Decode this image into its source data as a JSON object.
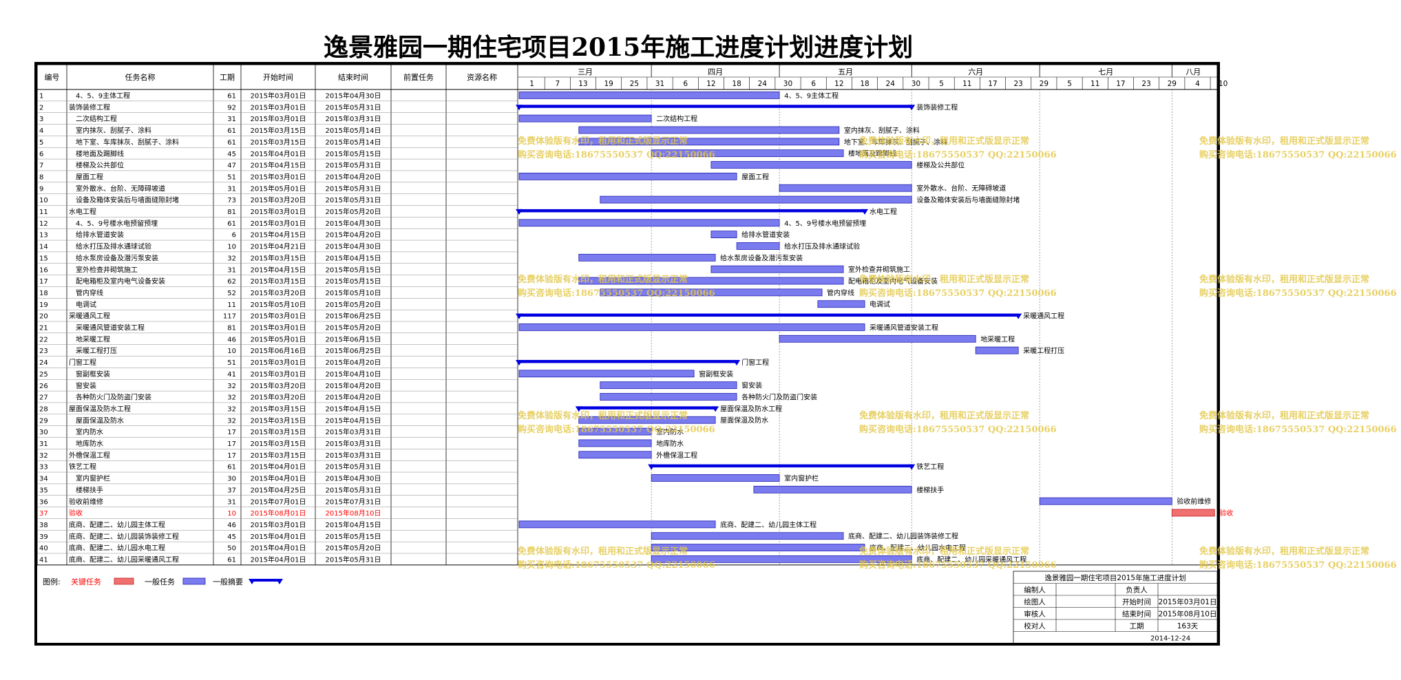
{
  "title": "逸景雅园一期住宅项目2015年施工进度计划进度计划",
  "table_headers": [
    "编号",
    "任务名称",
    "工期",
    "开始时间",
    "结束时间",
    "前置任务",
    "资源名称"
  ],
  "month_labels": [
    "三月",
    "四月",
    "五月",
    "六月",
    "七月",
    "八月"
  ],
  "day_labels": [
    "1",
    "7",
    "13",
    "19",
    "25",
    "31",
    "6",
    "12",
    "18",
    "24",
    "30",
    "6",
    "12",
    "18",
    "24",
    "30",
    "5",
    "11",
    "17",
    "23",
    "29",
    "5",
    "11",
    "17",
    "23",
    "29",
    "4",
    "10"
  ],
  "legend": {
    "prefix": "图例:",
    "critical": "关键任务",
    "normal": "一般任务",
    "summary": "一般摘要"
  },
  "watermark": {
    "line1": "免费体验版有水印，租用和正式版显示正常",
    "line2": "购买咨询电话:18675550537 QQ:22150066"
  },
  "info_box": {
    "title": "逸景雅园一期住宅项目2015年施工进度计划",
    "rows": [
      [
        "编制人",
        "",
        "负责人",
        ""
      ],
      [
        "绘图人",
        "",
        "开始时间",
        "2015年03月01日"
      ],
      [
        "审核人",
        "",
        "结束时间",
        "2015年08月10日"
      ],
      [
        "校对人",
        "",
        "工期",
        "163天"
      ]
    ],
    "date": "2014-12-24"
  },
  "colors": {
    "task_bar": "#7b7bf0",
    "summary_bar": "#0000e0",
    "critical_bar": "#f07070",
    "critical_text": "#ff0000",
    "watermark": "#e3c84a"
  },
  "chart_data": {
    "type": "gantt",
    "project_start": "2015-03-01",
    "project_end": "2015-08-10",
    "tasks": [
      {
        "id": "1",
        "name": "4、5、9主体工程",
        "indent": 1,
        "duration": 61,
        "start": "2015年03月01日",
        "end": "2015年04月30日",
        "kind": "task"
      },
      {
        "id": "2",
        "name": "装饰装修工程",
        "indent": 0,
        "duration": 92,
        "start": "2015年03月01日",
        "end": "2015年05月31日",
        "kind": "summary"
      },
      {
        "id": "3",
        "name": "二次结构工程",
        "indent": 1,
        "duration": 31,
        "start": "2015年03月01日",
        "end": "2015年03月31日",
        "kind": "task"
      },
      {
        "id": "4",
        "name": "室内抹灰、刮腻子、涂料",
        "indent": 1,
        "duration": 61,
        "start": "2015年03月15日",
        "end": "2015年05月14日",
        "kind": "task"
      },
      {
        "id": "5",
        "name": "地下室、车库抹灰、刮腻子、涂料",
        "indent": 1,
        "duration": 61,
        "start": "2015年03月15日",
        "end": "2015年05月14日",
        "kind": "task"
      },
      {
        "id": "6",
        "name": "楼地面及踢脚线",
        "indent": 1,
        "duration": 45,
        "start": "2015年04月01日",
        "end": "2015年05月15日",
        "kind": "task"
      },
      {
        "id": "7",
        "name": "楼梯及公共部位",
        "indent": 1,
        "duration": 47,
        "start": "2015年04月15日",
        "end": "2015年05月31日",
        "kind": "task"
      },
      {
        "id": "8",
        "name": "屋面工程",
        "indent": 1,
        "duration": 51,
        "start": "2015年03月01日",
        "end": "2015年04月20日",
        "kind": "task"
      },
      {
        "id": "9",
        "name": "室外散水、台阶、无障碍坡道",
        "indent": 1,
        "duration": 31,
        "start": "2015年05月01日",
        "end": "2015年05月31日",
        "kind": "task"
      },
      {
        "id": "10",
        "name": "设备及箱体安装后与墙面缝隙封堵",
        "indent": 1,
        "duration": 73,
        "start": "2015年03月20日",
        "end": "2015年05月31日",
        "kind": "task"
      },
      {
        "id": "11",
        "name": "水电工程",
        "indent": 0,
        "duration": 81,
        "start": "2015年03月01日",
        "end": "2015年05月20日",
        "kind": "summary"
      },
      {
        "id": "12",
        "name": "4、5、9号楼水电预留预埋",
        "indent": 1,
        "duration": 61,
        "start": "2015年03月01日",
        "end": "2015年04月30日",
        "kind": "task"
      },
      {
        "id": "13",
        "name": "给排水管道安装",
        "indent": 1,
        "duration": 6,
        "start": "2015年04月15日",
        "end": "2015年04月20日",
        "kind": "task"
      },
      {
        "id": "14",
        "name": "给水打压及排水通球试验",
        "indent": 1,
        "duration": 10,
        "start": "2015年04月21日",
        "end": "2015年04月30日",
        "kind": "task"
      },
      {
        "id": "15",
        "name": "给水泵房设备及潜污泵安装",
        "indent": 1,
        "duration": 32,
        "start": "2015年03月15日",
        "end": "2015年04月15日",
        "kind": "task"
      },
      {
        "id": "16",
        "name": "室外检查井砌筑施工",
        "indent": 1,
        "duration": 31,
        "start": "2015年04月15日",
        "end": "2015年05月15日",
        "kind": "task"
      },
      {
        "id": "17",
        "name": "配电箱柜及室内电气设备安装",
        "indent": 1,
        "duration": 62,
        "start": "2015年03月15日",
        "end": "2015年05月15日",
        "kind": "task"
      },
      {
        "id": "18",
        "name": "管内穿线",
        "indent": 1,
        "duration": 52,
        "start": "2015年03月20日",
        "end": "2015年05月10日",
        "kind": "task"
      },
      {
        "id": "19",
        "name": "电调试",
        "indent": 1,
        "duration": 11,
        "start": "2015年05月10日",
        "end": "2015年05月20日",
        "kind": "task"
      },
      {
        "id": "20",
        "name": "采暖通风工程",
        "indent": 0,
        "duration": 117,
        "start": "2015年03月01日",
        "end": "2015年06月25日",
        "kind": "summary"
      },
      {
        "id": "21",
        "name": "采暖通风管道安装工程",
        "indent": 1,
        "duration": 81,
        "start": "2015年03月01日",
        "end": "2015年05月20日",
        "kind": "task"
      },
      {
        "id": "22",
        "name": "地采暖工程",
        "indent": 1,
        "duration": 46,
        "start": "2015年05月01日",
        "end": "2015年06月15日",
        "kind": "task"
      },
      {
        "id": "23",
        "name": "采暖工程打压",
        "indent": 1,
        "duration": 10,
        "start": "2015年06月16日",
        "end": "2015年06月25日",
        "kind": "task"
      },
      {
        "id": "24",
        "name": "门窗工程",
        "indent": 0,
        "duration": 51,
        "start": "2015年03月01日",
        "end": "2015年04月20日",
        "kind": "summary"
      },
      {
        "id": "25",
        "name": "窗副框安装",
        "indent": 1,
        "duration": 41,
        "start": "2015年03月01日",
        "end": "2015年04月10日",
        "kind": "task"
      },
      {
        "id": "26",
        "name": "窗安装",
        "indent": 1,
        "duration": 32,
        "start": "2015年03月20日",
        "end": "2015年04月20日",
        "kind": "task"
      },
      {
        "id": "27",
        "name": "各种防火门及防盗门安装",
        "indent": 1,
        "duration": 32,
        "start": "2015年03月20日",
        "end": "2015年04月20日",
        "kind": "task"
      },
      {
        "id": "28",
        "name": "屋面保温及防水工程",
        "indent": 0,
        "duration": 32,
        "start": "2015年03月15日",
        "end": "2015年04月15日",
        "kind": "summary"
      },
      {
        "id": "29",
        "name": "屋面保温及防水",
        "indent": 1,
        "duration": 32,
        "start": "2015年03月15日",
        "end": "2015年04月15日",
        "kind": "task"
      },
      {
        "id": "30",
        "name": "室内防水",
        "indent": 1,
        "duration": 17,
        "start": "2015年03月15日",
        "end": "2015年03月31日",
        "kind": "task"
      },
      {
        "id": "31",
        "name": "地库防水",
        "indent": 1,
        "duration": 17,
        "start": "2015年03月15日",
        "end": "2015年03月31日",
        "kind": "task"
      },
      {
        "id": "32",
        "name": "外檐保温工程",
        "indent": 0,
        "duration": 17,
        "start": "2015年03月15日",
        "end": "2015年03月31日",
        "kind": "task"
      },
      {
        "id": "33",
        "name": "铁艺工程",
        "indent": 0,
        "duration": 61,
        "start": "2015年04月01日",
        "end": "2015年05月31日",
        "kind": "summary"
      },
      {
        "id": "34",
        "name": "室内窗护栏",
        "indent": 1,
        "duration": 30,
        "start": "2015年04月01日",
        "end": "2015年04月30日",
        "kind": "task"
      },
      {
        "id": "35",
        "name": "楼梯扶手",
        "indent": 1,
        "duration": 37,
        "start": "2015年04月25日",
        "end": "2015年05月31日",
        "kind": "task"
      },
      {
        "id": "36",
        "name": "验收前维修",
        "indent": 0,
        "duration": 31,
        "start": "2015年07月01日",
        "end": "2015年07月31日",
        "kind": "task"
      },
      {
        "id": "37",
        "name": "验收",
        "indent": 0,
        "duration": 10,
        "start": "2015年08月01日",
        "end": "2015年08月10日",
        "kind": "critical"
      },
      {
        "id": "38",
        "name": "底商、配建二、幼儿园主体工程",
        "indent": 0,
        "duration": 46,
        "start": "2015年03月01日",
        "end": "2015年04月15日",
        "kind": "task"
      },
      {
        "id": "39",
        "name": "底商、配建二、幼儿园装饰装修工程",
        "indent": 0,
        "duration": 45,
        "start": "2015年04月01日",
        "end": "2015年05月15日",
        "kind": "task"
      },
      {
        "id": "40",
        "name": "底商、配建二、幼儿园水电工程",
        "indent": 0,
        "duration": 50,
        "start": "2015年04月01日",
        "end": "2015年05月20日",
        "kind": "task"
      },
      {
        "id": "41",
        "name": "底商、配建二、幼儿园采暖通风工程",
        "indent": 0,
        "duration": 61,
        "start": "2015年04月01日",
        "end": "2015年05月31日",
        "kind": "task"
      }
    ]
  }
}
